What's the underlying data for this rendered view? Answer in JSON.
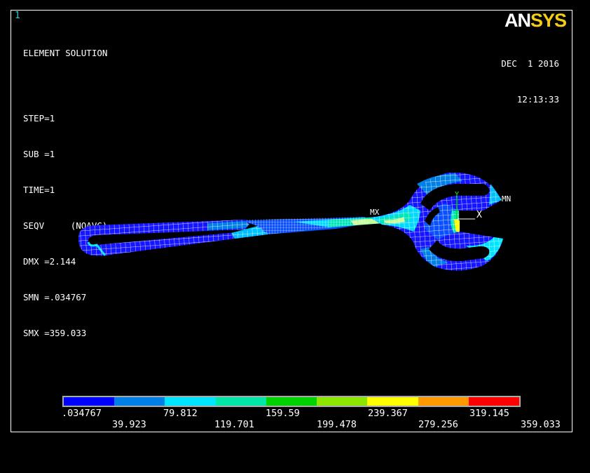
{
  "window_number": "1",
  "info": {
    "title": "ELEMENT SOLUTION",
    "lines": [
      "STEP=1",
      "SUB =1",
      "TIME=1",
      "SEQV     (NOAVG)",
      "DMX =2.144",
      "SMN =.034767",
      "SMX =359.033"
    ]
  },
  "logo": {
    "an": "AN",
    "sys": "SYS"
  },
  "date": "DEC  1 2016",
  "time": "12:13:33",
  "markers": {
    "mx": "MX",
    "mn": "MN",
    "axis_x": "X",
    "axis_y": "Y"
  },
  "legend": {
    "colors": [
      "#0000ff",
      "#0080e6",
      "#00e5ff",
      "#00e6a6",
      "#00d100",
      "#8ce600",
      "#ffff00",
      "#ff9900",
      "#ff0000"
    ],
    "top_values": [
      ".034767",
      "79.812",
      "159.59",
      "239.367",
      "319.145"
    ],
    "bottom_values": [
      "39.923",
      "119.701",
      "199.478",
      "279.256",
      "359.033"
    ]
  }
}
